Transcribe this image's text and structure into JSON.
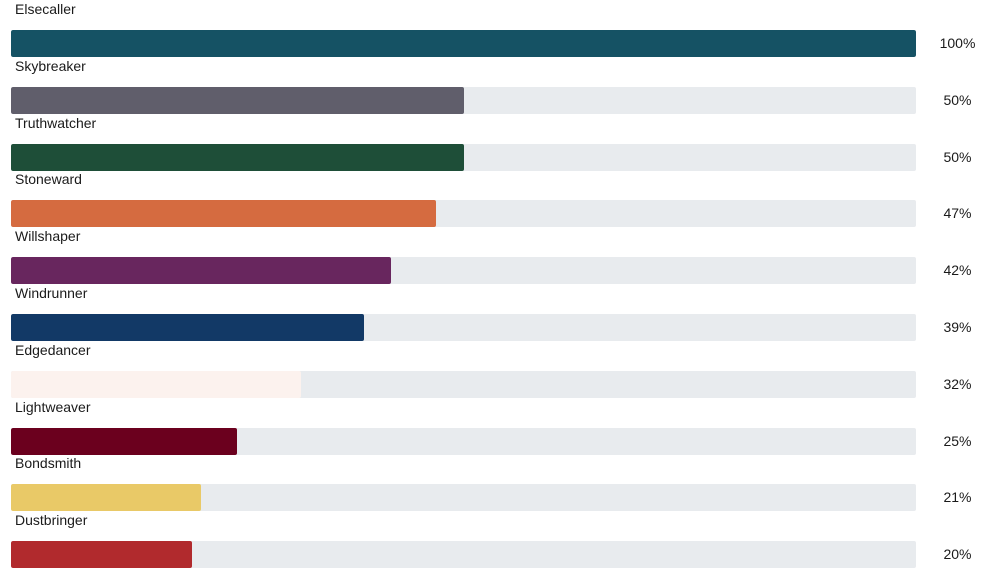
{
  "chart_data": {
    "type": "bar",
    "orientation": "horizontal",
    "categories": [
      "Elsecaller",
      "Skybreaker",
      "Truthwatcher",
      "Stoneward",
      "Willshaper",
      "Windrunner",
      "Edgedancer",
      "Lightweaver",
      "Bondsmith",
      "Dustbringer"
    ],
    "values": [
      100,
      50,
      50,
      47,
      42,
      39,
      32,
      25,
      21,
      20
    ],
    "value_labels": [
      "100%",
      "50%",
      "50%",
      "47%",
      "42%",
      "39%",
      "32%",
      "25%",
      "21%",
      "20%"
    ],
    "colors": [
      "#155264",
      "#605e6b",
      "#1e4e38",
      "#d56b40",
      "#68265e",
      "#123966",
      "#fcf2ee",
      "#6b001e",
      "#e9c967",
      "#b12a2d"
    ],
    "track_color": "#e8ebee",
    "xlim": [
      0,
      100
    ],
    "unit": "%",
    "grid": false,
    "legend": "none"
  }
}
